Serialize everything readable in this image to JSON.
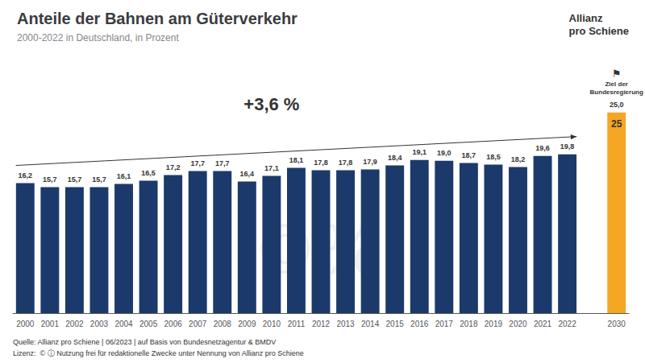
{
  "chart_data": {
    "type": "bar",
    "title": "Anteile der Bahnen am Güterverkehr",
    "subtitle": "2000-2022 in Deutschland, in Prozent",
    "categories": [
      "2000",
      "2001",
      "2002",
      "2003",
      "2004",
      "2005",
      "2006",
      "2007",
      "2008",
      "2009",
      "2010",
      "2011",
      "2012",
      "2013",
      "2014",
      "2015",
      "2016",
      "2017",
      "2018",
      "2019",
      "2020",
      "2021",
      "2022",
      null,
      "2030"
    ],
    "values": [
      16.2,
      15.7,
      15.7,
      15.7,
      16.1,
      16.5,
      17.2,
      17.7,
      17.7,
      16.4,
      17.1,
      18.1,
      17.8,
      17.8,
      17.9,
      18.4,
      19.1,
      19.0,
      18.7,
      18.5,
      18.2,
      19.6,
      19.8,
      null,
      25
    ],
    "value_labels": [
      "16,2",
      "15,7",
      "15,7",
      "15,7",
      "16,1",
      "16,5",
      "17,2",
      "17,7",
      "17,7",
      "16,4",
      "17,1",
      "18,1",
      "17,8",
      "17,8",
      "17,9",
      "18,4",
      "19,1",
      "19,0",
      "18,7",
      "18,5",
      "18,2",
      "19,6",
      "19,8",
      null,
      "25,0"
    ],
    "colors": [
      "#1b3a6b",
      "#1b3a6b",
      "#1b3a6b",
      "#1b3a6b",
      "#1b3a6b",
      "#1b3a6b",
      "#1b3a6b",
      "#1b3a6b",
      "#1b3a6b",
      "#1b3a6b",
      "#1b3a6b",
      "#1b3a6b",
      "#1b3a6b",
      "#1b3a6b",
      "#1b3a6b",
      "#1b3a6b",
      "#1b3a6b",
      "#1b3a6b",
      "#1b3a6b",
      "#1b3a6b",
      "#1b3a6b",
      "#1b3a6b",
      "#1b3a6b",
      "#1b3a6b",
      "#f5a623"
    ],
    "ylim": [
      0,
      30
    ],
    "grid": false,
    "tick_labels": "x",
    "data_labels": true,
    "annotations": {
      "trend": "+3,6 %",
      "goal_value": "25",
      "goal": "Ziel der\nBundesregierung",
      "flag": "⚑",
      "watermark": "©%",
      "source": "Quelle: Allianz pro Schiene | 06/2023 | auf Basis von Bundesnetzagentur & BMDV",
      "license": "Lizenz:  © ⓘ Nutzung frei für redaktionelle Zwecke unter Nennung von Allianz pro Schiene",
      "logo": [
        "Allianz",
        "pro Schiene"
      ]
    }
  }
}
